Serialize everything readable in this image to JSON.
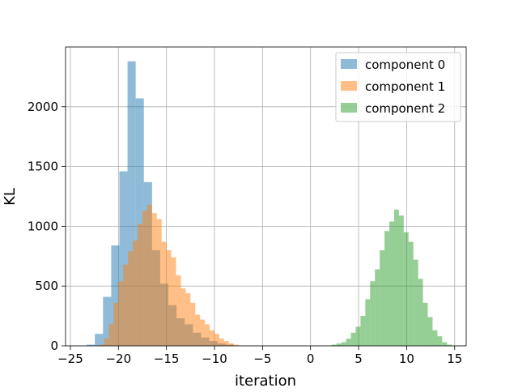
{
  "chart_data": {
    "type": "bar",
    "title": "",
    "xlabel": "iteration",
    "ylabel": "KL",
    "xlim": [
      -25.5,
      16.2
    ],
    "ylim": [
      0,
      2500
    ],
    "grid": true,
    "legend_position": "top-right",
    "x_ticks": [
      -25,
      -20,
      -15,
      -10,
      -5,
      0,
      5,
      10,
      15
    ],
    "x_tick_labels": [
      "−25",
      "−20",
      "−15",
      "−10",
      "−5",
      "0",
      "5",
      "10",
      "15"
    ],
    "y_ticks": [
      0,
      500,
      1000,
      1500,
      2000
    ],
    "y_tick_labels": [
      "0",
      "500",
      "1000",
      "1500",
      "2000"
    ],
    "series": [
      {
        "name": "component 0",
        "color": "#1f77b4",
        "alpha": 0.5,
        "bins": [
          [
            -23.3,
            -22.45,
            10
          ],
          [
            -22.45,
            -21.6,
            100
          ],
          [
            -21.6,
            -20.75,
            410
          ],
          [
            -20.75,
            -19.9,
            840
          ],
          [
            -19.9,
            -19.05,
            1460
          ],
          [
            -19.05,
            -18.2,
            2380
          ],
          [
            -18.2,
            -17.35,
            2070
          ],
          [
            -17.35,
            -16.5,
            1370
          ],
          [
            -16.5,
            -15.65,
            800
          ],
          [
            -15.65,
            -14.8,
            520
          ],
          [
            -14.8,
            -13.95,
            340
          ],
          [
            -13.95,
            -13.1,
            230
          ],
          [
            -13.1,
            -12.25,
            180
          ],
          [
            -12.25,
            -11.4,
            110
          ],
          [
            -11.4,
            -10.55,
            70
          ],
          [
            -10.55,
            -9.7,
            40
          ],
          [
            -9.7,
            -8.85,
            20
          ],
          [
            -8.85,
            -8.0,
            10
          ]
        ]
      },
      {
        "name": "component 1",
        "color": "#ff7f0e",
        "alpha": 0.5,
        "bins": [
          [
            -22.0,
            -21.5,
            10
          ],
          [
            -21.5,
            -21.0,
            60
          ],
          [
            -21.0,
            -20.5,
            180
          ],
          [
            -20.5,
            -20.0,
            360
          ],
          [
            -20.0,
            -19.5,
            540
          ],
          [
            -19.5,
            -19.0,
            680
          ],
          [
            -19.0,
            -18.5,
            790
          ],
          [
            -18.5,
            -18.0,
            880
          ],
          [
            -18.0,
            -17.5,
            1020
          ],
          [
            -17.5,
            -17.0,
            1130
          ],
          [
            -17.0,
            -16.5,
            1180
          ],
          [
            -16.5,
            -16.0,
            1110
          ],
          [
            -16.0,
            -15.5,
            1060
          ],
          [
            -15.5,
            -15.0,
            870
          ],
          [
            -15.0,
            -14.5,
            800
          ],
          [
            -14.5,
            -14.0,
            740
          ],
          [
            -14.0,
            -13.5,
            590
          ],
          [
            -13.5,
            -13.0,
            480
          ],
          [
            -13.0,
            -12.5,
            440
          ],
          [
            -12.5,
            -12.0,
            360
          ],
          [
            -12.0,
            -11.5,
            260
          ],
          [
            -11.5,
            -11.0,
            220
          ],
          [
            -11.0,
            -10.5,
            180
          ],
          [
            -10.5,
            -10.0,
            130
          ],
          [
            -10.0,
            -9.5,
            100
          ],
          [
            -9.5,
            -9.0,
            60
          ],
          [
            -9.0,
            -8.5,
            40
          ],
          [
            -8.5,
            -8.0,
            20
          ],
          [
            -8.0,
            -7.5,
            10
          ]
        ]
      },
      {
        "name": "component 2",
        "color": "#2ca02c",
        "alpha": 0.5,
        "bins": [
          [
            2.2,
            2.7,
            10
          ],
          [
            2.7,
            3.2,
            20
          ],
          [
            3.2,
            3.7,
            30
          ],
          [
            3.7,
            4.2,
            60
          ],
          [
            4.2,
            4.7,
            110
          ],
          [
            4.7,
            5.2,
            160
          ],
          [
            5.2,
            5.7,
            250
          ],
          [
            5.7,
            6.2,
            390
          ],
          [
            6.2,
            6.7,
            540
          ],
          [
            6.7,
            7.2,
            640
          ],
          [
            7.2,
            7.7,
            800
          ],
          [
            7.7,
            8.2,
            960
          ],
          [
            8.2,
            8.7,
            1040
          ],
          [
            8.7,
            9.2,
            1140
          ],
          [
            9.2,
            9.7,
            1090
          ],
          [
            9.7,
            10.2,
            950
          ],
          [
            10.2,
            10.7,
            870
          ],
          [
            10.7,
            11.2,
            720
          ],
          [
            11.2,
            11.7,
            560
          ],
          [
            11.7,
            12.2,
            360
          ],
          [
            12.2,
            12.7,
            240
          ],
          [
            12.7,
            13.2,
            130
          ],
          [
            13.2,
            13.7,
            80
          ],
          [
            13.7,
            14.2,
            30
          ],
          [
            14.2,
            14.7,
            10
          ]
        ]
      }
    ]
  }
}
